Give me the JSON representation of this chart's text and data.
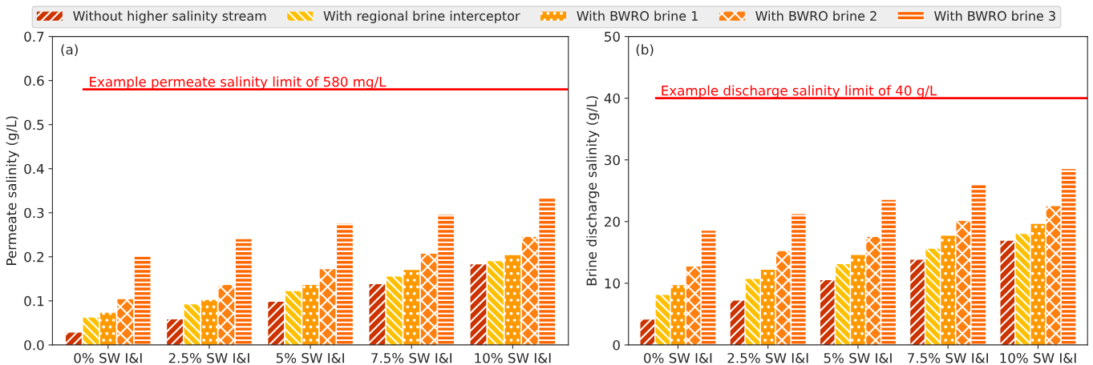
{
  "chart_data": [
    {
      "type": "bar",
      "ylabel": "Permeate salinity (g/L)",
      "categories": [
        "0% SW I&I",
        "2.5% SW I&I",
        "5% SW I&I",
        "7.5% SW I&I",
        "10% SW I&I"
      ],
      "series": [
        {
          "name": "Without higher salinity stream",
          "color": "#cc3300",
          "values": [
            0.028,
            0.058,
            0.098,
            0.138,
            0.183
          ]
        },
        {
          "name": "With regional brine interceptor",
          "color": "#ffc000",
          "values": [
            0.062,
            0.092,
            0.122,
            0.155,
            0.19
          ]
        },
        {
          "name": "With BWRO brine 1",
          "color": "#ff9900",
          "values": [
            0.073,
            0.102,
            0.136,
            0.17,
            0.204
          ]
        },
        {
          "name": "With BWRO brine 2",
          "color": "#ff8010",
          "values": [
            0.104,
            0.136,
            0.172,
            0.207,
            0.245
          ]
        },
        {
          "name": "With BWRO brine 3",
          "color": "#ff6600",
          "values": [
            0.2,
            0.24,
            0.275,
            0.296,
            0.333
          ]
        }
      ],
      "ylim": [
        0,
        0.7
      ],
      "yticks": [
        {
          "value": 0,
          "label": "0.0"
        },
        0.1,
        0.2,
        0.3,
        0.4,
        0.5,
        0.6,
        0.7
      ],
      "ref_lines": [
        {
          "axis": "y",
          "value": 0.58,
          "label": "Example permeate salinity limit of 580 mg/L",
          "color": "#ff0000"
        }
      ],
      "annotations": [
        "(a)"
      ],
      "legend": "top"
    },
    {
      "type": "bar",
      "ylabel": "Brine discharge salinity (g/L)",
      "categories": [
        "0% SW I&I",
        "2.5% SW I&I",
        "5% SW I&I",
        "7.5% SW I&I",
        "10% SW I&I"
      ],
      "series": [
        {
          "color": "#cc3300",
          "values": [
            4.1,
            7.2,
            10.5,
            13.8,
            16.9
          ]
        },
        {
          "color": "#ffc000",
          "values": [
            8.1,
            10.7,
            13.1,
            15.6,
            18.0
          ]
        },
        {
          "color": "#ff9900",
          "values": [
            9.7,
            12.2,
            14.6,
            17.7,
            19.6
          ]
        },
        {
          "color": "#ff8010",
          "values": [
            12.7,
            15.2,
            17.5,
            20.1,
            22.5
          ]
        },
        {
          "color": "#ff6600",
          "values": [
            18.5,
            21.2,
            23.5,
            26.0,
            28.5
          ]
        }
      ],
      "ylim": [
        0,
        50
      ],
      "yticks": [
        0,
        10,
        20,
        30,
        40,
        50
      ],
      "ref_lines": [
        {
          "axis": "y",
          "value": 40,
          "label": "Example discharge salinity limit of 40 g/L",
          "color": "#ff0000"
        }
      ],
      "annotations": [
        "(b)"
      ]
    }
  ]
}
